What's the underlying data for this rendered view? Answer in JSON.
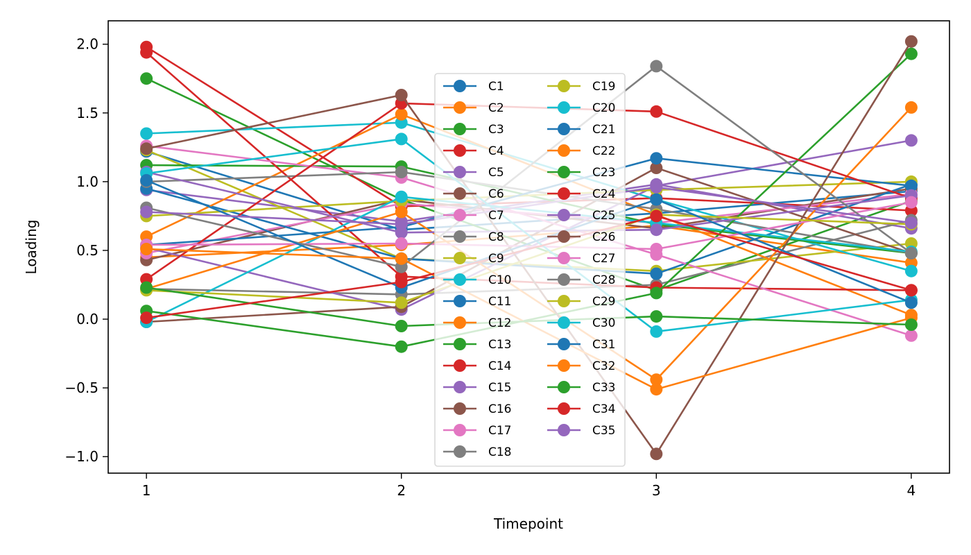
{
  "chart_data": {
    "type": "line",
    "title": "",
    "xlabel": "Timepoint",
    "ylabel": "Loading",
    "x": [
      1,
      2,
      3,
      4
    ],
    "xticks": [
      "1",
      "2",
      "3",
      "4"
    ],
    "yticks": [
      "−1.0",
      "−0.5",
      "0.0",
      "0.5",
      "1.0",
      "1.5",
      "2.0"
    ],
    "ytick_values": [
      -1.0,
      -0.5,
      0.0,
      0.5,
      1.0,
      1.5,
      2.0
    ],
    "xlim": [
      0.85,
      4.15
    ],
    "ylim": [
      -1.12,
      2.17
    ],
    "grid": false,
    "legend_position": "center",
    "legend_columns": 2,
    "series": [
      {
        "name": "C1",
        "color": "#1f77b4",
        "values": [
          1.22,
          0.65,
          0.77,
          0.93
        ]
      },
      {
        "name": "C2",
        "color": "#ff7f0e",
        "values": [
          0.45,
          0.54,
          0.68,
          0.41
        ]
      },
      {
        "name": "C3",
        "color": "#2ca02c",
        "values": [
          1.75,
          0.87,
          0.21,
          0.86
        ]
      },
      {
        "name": "C4",
        "color": "#d62728",
        "values": [
          1.98,
          0.82,
          0.88,
          0.79
        ]
      },
      {
        "name": "C5",
        "color": "#9467bd",
        "values": [
          0.94,
          0.71,
          0.98,
          0.66
        ]
      },
      {
        "name": "C6",
        "color": "#8c564b",
        "values": [
          0.43,
          0.87,
          0.66,
          0.95
        ]
      },
      {
        "name": "C7",
        "color": "#e377c2",
        "values": [
          0.48,
          0.84,
          0.7,
          0.91
        ]
      },
      {
        "name": "C8",
        "color": "#7f7f7f",
        "values": [
          0.22,
          0.18,
          0.25,
          0.72
        ]
      },
      {
        "name": "C9",
        "color": "#bcbd22",
        "values": [
          1.23,
          0.44,
          0.35,
          0.55
        ]
      },
      {
        "name": "C10",
        "color": "#17becf",
        "values": [
          1.35,
          1.43,
          0.87,
          0.35
        ]
      },
      {
        "name": "C11",
        "color": "#1f77b4",
        "values": [
          0.95,
          0.44,
          0.33,
          0.98
        ]
      },
      {
        "name": "C12",
        "color": "#ff7f0e",
        "values": [
          0.6,
          1.49,
          0.76,
          0.03
        ]
      },
      {
        "name": "C13",
        "color": "#2ca02c",
        "values": [
          1.12,
          1.11,
          0.69,
          0.48
        ]
      },
      {
        "name": "C14",
        "color": "#d62728",
        "values": [
          1.94,
          0.31,
          0.23,
          0.21
        ]
      },
      {
        "name": "C15",
        "color": "#9467bd",
        "values": [
          0.52,
          0.07,
          0.97,
          1.3
        ]
      },
      {
        "name": "C16",
        "color": "#8c564b",
        "values": [
          -0.02,
          0.09,
          1.1,
          0.48
        ]
      },
      {
        "name": "C17",
        "color": "#e377c2",
        "values": [
          1.26,
          1.03,
          0.47,
          -0.12
        ]
      },
      {
        "name": "C18",
        "color": "#7f7f7f",
        "values": [
          1.0,
          1.07,
          0.8,
          0.48
        ]
      },
      {
        "name": "C19",
        "color": "#bcbd22",
        "values": [
          0.75,
          0.86,
          0.94,
          1.0
        ]
      },
      {
        "name": "C20",
        "color": "#17becf",
        "values": [
          -0.02,
          0.89,
          0.7,
          0.49
        ]
      },
      {
        "name": "C21",
        "color": "#1f77b4",
        "values": [
          0.54,
          0.67,
          1.17,
          0.97
        ]
      },
      {
        "name": "C22",
        "color": "#ff7f0e",
        "values": [
          0.22,
          0.78,
          -0.44,
          1.54
        ]
      },
      {
        "name": "C23",
        "color": "#2ca02c",
        "values": [
          0.06,
          -0.2,
          0.19,
          1.93
        ]
      },
      {
        "name": "C24",
        "color": "#d62728",
        "values": [
          0.29,
          1.57,
          1.51,
          0.88
        ]
      },
      {
        "name": "C25",
        "color": "#9467bd",
        "values": [
          1.07,
          0.63,
          0.65,
          0.9
        ]
      },
      {
        "name": "C26",
        "color": "#8c564b",
        "values": [
          1.24,
          1.63,
          -0.98,
          2.02
        ]
      },
      {
        "name": "C27",
        "color": "#e377c2",
        "values": [
          0.54,
          0.55,
          0.51,
          0.85
        ]
      },
      {
        "name": "C28",
        "color": "#7f7f7f",
        "values": [
          0.81,
          0.38,
          1.84,
          0.48
        ]
      },
      {
        "name": "C29",
        "color": "#bcbd22",
        "values": [
          0.21,
          0.12,
          0.76,
          0.69
        ]
      },
      {
        "name": "C30",
        "color": "#17becf",
        "values": [
          1.06,
          1.31,
          -0.09,
          0.14
        ]
      },
      {
        "name": "C31",
        "color": "#1f77b4",
        "values": [
          1.01,
          0.23,
          0.87,
          0.12
        ]
      },
      {
        "name": "C32",
        "color": "#ff7f0e",
        "values": [
          0.51,
          0.44,
          -0.51,
          0.01
        ]
      },
      {
        "name": "C33",
        "color": "#2ca02c",
        "values": [
          0.23,
          -0.05,
          0.02,
          -0.04
        ]
      },
      {
        "name": "C34",
        "color": "#d62728",
        "values": [
          0.01,
          0.27,
          0.75,
          0.21
        ]
      },
      {
        "name": "C35",
        "color": "#9467bd",
        "values": [
          0.78,
          0.69,
          0.96,
          0.7
        ]
      }
    ]
  }
}
